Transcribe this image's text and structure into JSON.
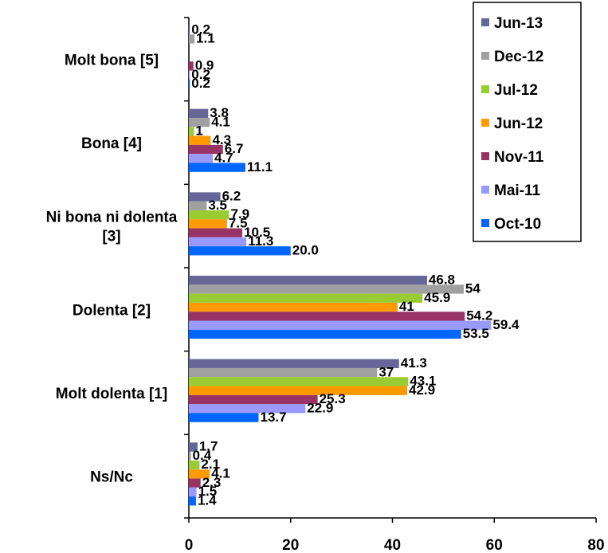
{
  "chart_data": {
    "type": "bar",
    "orientation": "horizontal",
    "categories": [
      "Molt bona [5]",
      "Bona [4]",
      "Ni bona ni dolenta [3]",
      "Dolenta [2]",
      "Molt dolenta [1]",
      "Ns/Nc"
    ],
    "category_lines": [
      [
        "Molt bona [5]"
      ],
      [
        "Bona [4]"
      ],
      [
        "Ni bona ni dolenta",
        "[3]"
      ],
      [
        "Dolenta [2]"
      ],
      [
        "Molt dolenta [1]"
      ],
      [
        "Ns/Nc"
      ]
    ],
    "series": [
      {
        "name": "Jun-13",
        "color": "#666699",
        "values": [
          0.2,
          3.8,
          6.2,
          46.8,
          41.3,
          1.7
        ],
        "labels": [
          "0.2",
          "3.8",
          "6.2",
          "46.8",
          "41.3",
          "1.7"
        ]
      },
      {
        "name": "Dec-12",
        "color": "#A0A0A0",
        "values": [
          1.1,
          4.1,
          3.5,
          54,
          37,
          0.4
        ],
        "labels": [
          "1.1",
          "4.1",
          "3.5",
          "54",
          "37",
          "0.4"
        ]
      },
      {
        "name": "Jul-12",
        "color": "#99CC33",
        "values": [
          0,
          1,
          7.9,
          45.9,
          43.1,
          2.1
        ],
        "labels": [
          "",
          "1",
          "7.9",
          "45.9",
          "43.1",
          "2.1"
        ]
      },
      {
        "name": "Jun-12",
        "color": "#FF9900",
        "values": [
          0,
          4.3,
          7.5,
          41,
          42.9,
          4.1
        ],
        "labels": [
          "",
          "4.3",
          "7.5",
          "41",
          "42.9",
          "4.1"
        ]
      },
      {
        "name": "Nov-11",
        "color": "#993366",
        "values": [
          0.9,
          6.7,
          10.5,
          54.2,
          25.3,
          2.3
        ],
        "labels": [
          "0.9",
          "6.7",
          "10.5",
          "54.2",
          "25.3",
          "2.3"
        ]
      },
      {
        "name": "Mai-11",
        "color": "#9999FF",
        "values": [
          0.2,
          4.7,
          11.3,
          59.4,
          22.9,
          1.5
        ],
        "labels": [
          "0.2",
          "4.7",
          "11.3",
          "59.4",
          "22.9",
          "1.5"
        ]
      },
      {
        "name": "Oct-10",
        "color": "#0066FF",
        "values": [
          0.2,
          11.1,
          20.0,
          53.5,
          13.7,
          1.4
        ],
        "labels": [
          "0.2",
          "11.1",
          "20.0",
          "53.5",
          "13.7",
          "1.4"
        ]
      }
    ],
    "xlim": [
      0,
      80
    ],
    "x_ticks": [
      0,
      20,
      40,
      60,
      80
    ],
    "legend_position": "top-right",
    "grid": false
  }
}
